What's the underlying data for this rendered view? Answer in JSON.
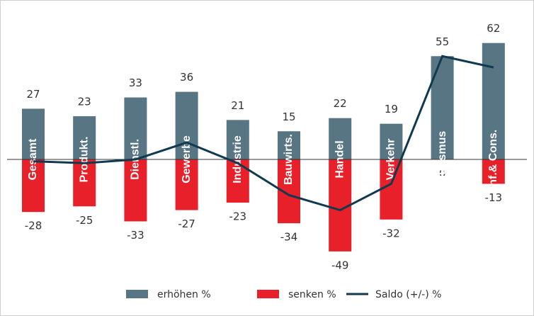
{
  "chart_data": {
    "type": "bar",
    "categories": [
      "Gesamt",
      "Produkt.",
      "Dienstl.",
      "Gewerbe",
      "Industrie",
      "Bauwirts.",
      "Handel",
      "Verkehr",
      "Tourismus",
      "Inf.& Cons."
    ],
    "series": [
      {
        "name": "erhöhen %",
        "color": "#587584",
        "values": [
          27,
          23,
          33,
          36,
          21,
          15,
          22,
          19,
          55,
          62
        ]
      },
      {
        "name": "senken %",
        "color": "#e8202a",
        "values": [
          -28,
          -25,
          -33,
          -27,
          -23,
          -34,
          -49,
          -32,
          0,
          -13
        ]
      },
      {
        "name": "Saldo (+/-) %",
        "color": "#0f3a4f",
        "type": "line",
        "values": [
          -1,
          -2,
          0,
          9,
          -2,
          -19,
          -27,
          -13,
          55,
          49
        ]
      }
    ]
  }
}
